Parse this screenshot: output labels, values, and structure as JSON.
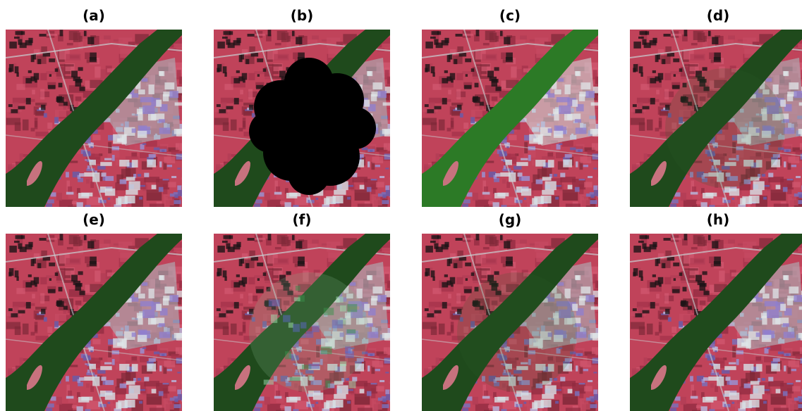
{
  "figure": {
    "panels": [
      {
        "id": "a",
        "label": "(a)",
        "variant": "original"
      },
      {
        "id": "b",
        "label": "(b)",
        "variant": "cloud-mask"
      },
      {
        "id": "c",
        "label": "(c)",
        "variant": "bright-green"
      },
      {
        "id": "d",
        "label": "(d)",
        "variant": "faint-seam"
      },
      {
        "id": "e",
        "label": "(e)",
        "variant": "reconstructed"
      },
      {
        "id": "f",
        "label": "(f)",
        "variant": "blotchy"
      },
      {
        "id": "g",
        "label": "(g)",
        "variant": "faint-seam"
      },
      {
        "id": "h",
        "label": "(h)",
        "variant": "reconstructed"
      }
    ]
  },
  "colors": {
    "vegetation": "#c0435a",
    "water": "#1f4a1c",
    "water_bright": "#2c7a26",
    "builtup": "#a9c0c4",
    "mask": "#000000",
    "background": "#ffffff"
  }
}
